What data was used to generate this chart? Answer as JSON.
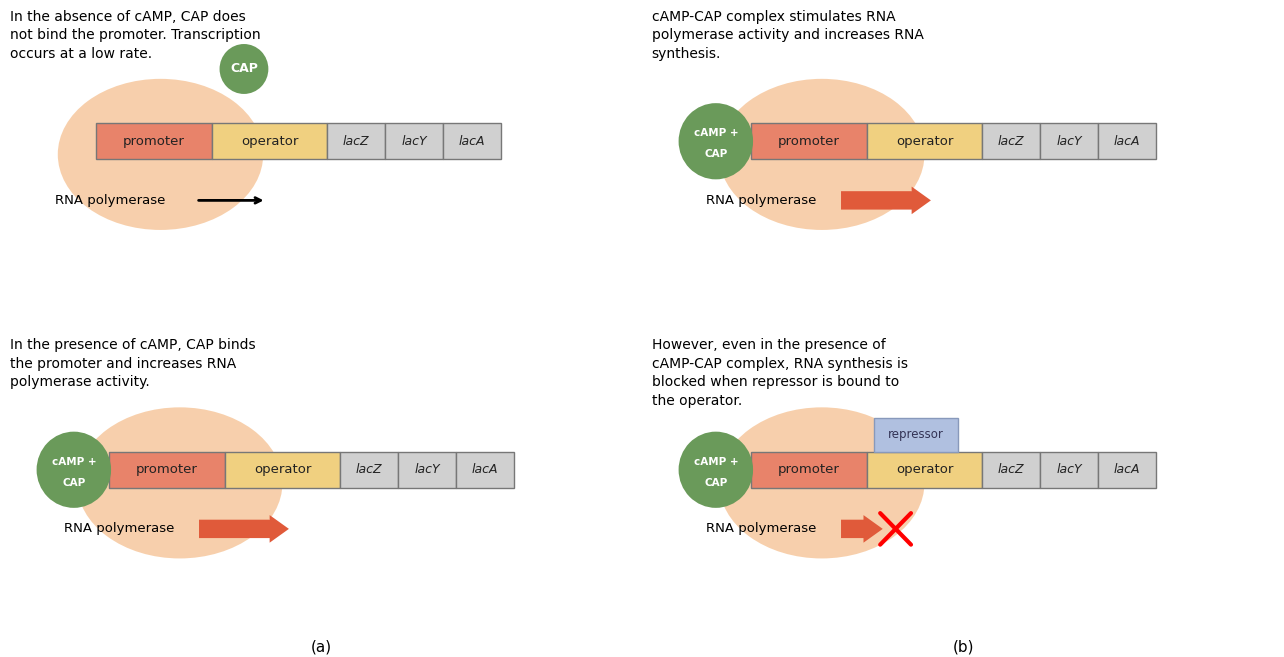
{
  "bg_color": "#ffffff",
  "promoter_color": "#e8836a",
  "operator_color": "#f0d080",
  "gene_color": "#d0d0d0",
  "gene_border": "#888888",
  "cap_green": "#6a9a5a",
  "rna_poly_tan": "#f5c090",
  "arrow_orange": "#e05a3a",
  "repressor_color": "#b0c0e0",
  "text_color": "#000000",
  "panel_a_top_text": "In the absence of cAMP, CAP does\nnot bind the promoter. Transcription\noccurs at a low rate.",
  "panel_a_bot_text": "In the presence of cAMP, CAP binds\nthe promoter and increases RNA\npolymerase activity.",
  "panel_b_top_text": "cAMP-CAP complex stimulates RNA\npolymerase activity and increases RNA\nsynthesis.",
  "panel_b_bot_text": "However, even in the presence of\ncAMP-CAP complex, RNA synthesis is\nblocked when repressor is bound to\nthe operator.",
  "label_a": "(a)",
  "label_b": "(b)"
}
